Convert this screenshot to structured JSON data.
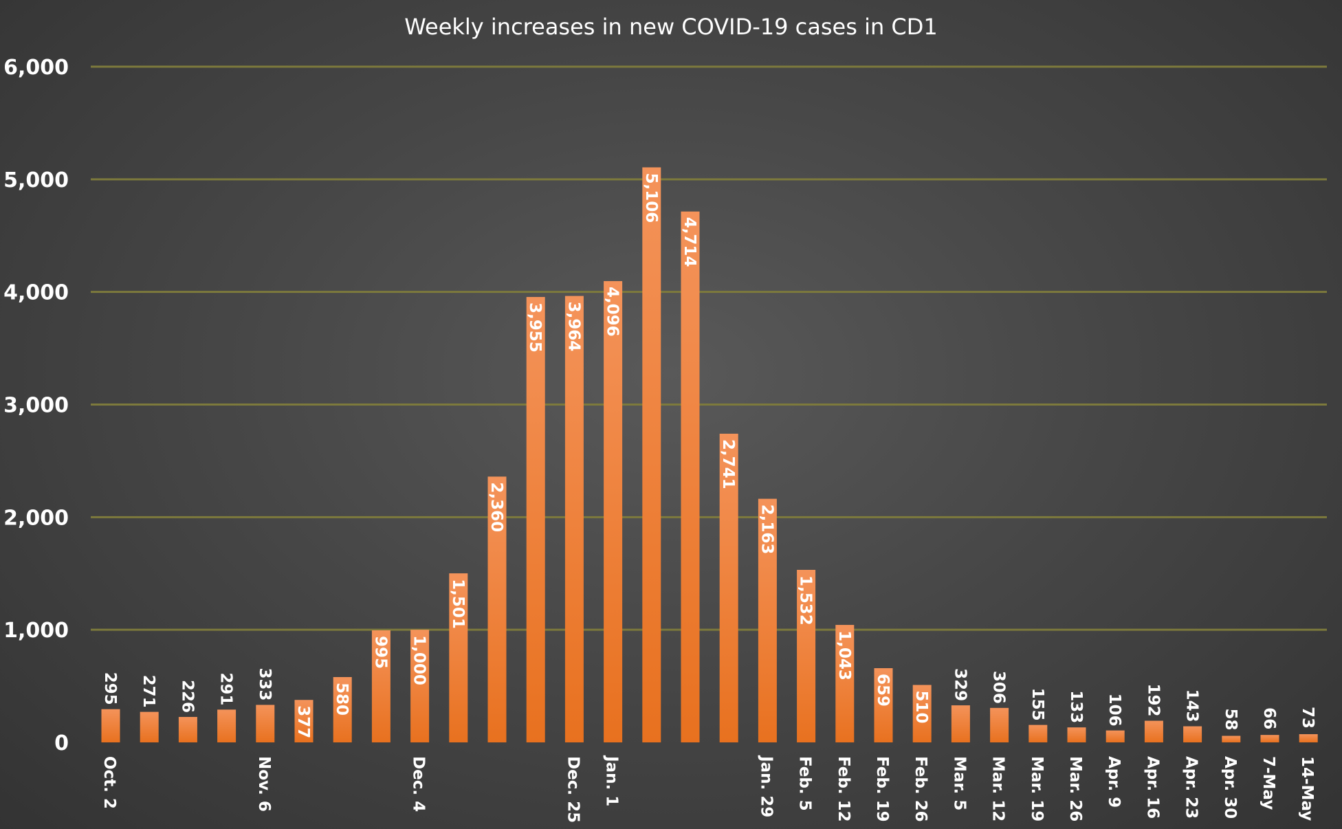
{
  "chart_data": {
    "type": "bar",
    "title": "Weekly increases in new COVID-19 cases in CD1",
    "xlabel": "",
    "ylabel": "",
    "ylim": [
      0,
      6000
    ],
    "yticks": [
      "0",
      "1,000",
      "2,000",
      "3,000",
      "4,000",
      "5,000",
      "6,000"
    ],
    "grid": true,
    "categories": [
      "Oct. 2",
      "",
      "",
      "",
      "Nov. 6",
      "",
      "",
      "",
      "Dec. 4",
      "",
      "",
      "",
      "Dec. 25",
      "Jan. 1",
      "",
      "",
      "",
      "Jan. 29",
      "Feb. 5",
      "Feb. 12",
      "Feb. 19",
      "Feb. 26",
      "Mar. 5",
      "Mar. 12",
      "Mar. 19",
      "Mar. 26",
      "Apr. 9",
      "Apr. 16",
      "Apr. 23",
      "Apr. 30",
      "7-May",
      "14-May"
    ],
    "values": [
      295,
      271,
      226,
      291,
      333,
      377,
      580,
      995,
      1000,
      1501,
      2360,
      3955,
      3964,
      4096,
      5106,
      4714,
      2741,
      2163,
      1532,
      1043,
      659,
      510,
      329,
      306,
      155,
      133,
      106,
      192,
      143,
      58,
      66,
      73
    ],
    "data_labels": [
      "295",
      "271",
      "226",
      "291",
      "333",
      "377",
      "580",
      "995",
      "1,000",
      "1,501",
      "2,360",
      "3,955",
      "3,964",
      "4,096",
      "5,106",
      "4,714",
      "2,741",
      "2,163",
      "1,532",
      "1,043",
      "659",
      "510",
      "329",
      "306",
      "155",
      "133",
      "106",
      "192",
      "143",
      "58",
      "66",
      "73"
    ],
    "colors": {
      "bar": "#ed7d31",
      "bar_light": "#f4935a",
      "grid": "#7d7a3c",
      "text": "#ffffff"
    }
  }
}
